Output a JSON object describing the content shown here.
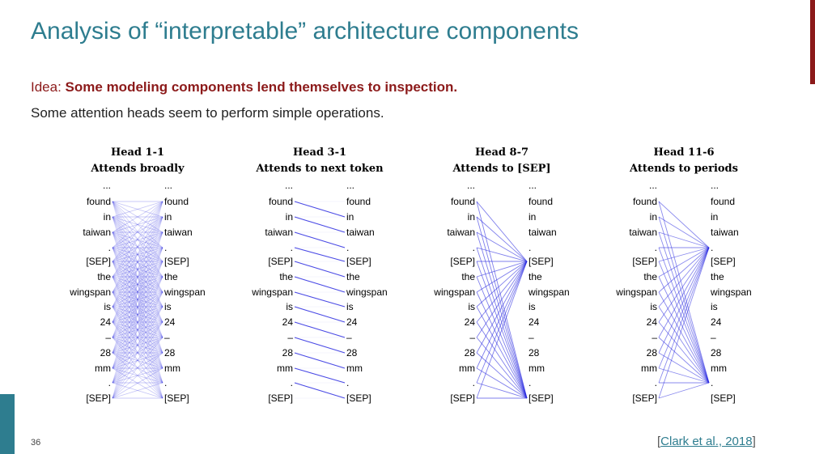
{
  "slide": {
    "title": "Analysis of “interpretable” architecture components",
    "idea_prefix": "Idea: ",
    "idea_bold": "Some modeling components lend themselves to inspection.",
    "subline": "Some attention heads seem to perform simple operations.",
    "page_number": "36",
    "citation_open": "[",
    "citation_link": "Clark et al., 2018",
    "citation_close": "]"
  },
  "colors": {
    "title": "#2e7d8f",
    "accent": "#8c1a1a",
    "attention": "#2a2ae0"
  },
  "tokens": [
    "...",
    "found",
    "in",
    "taiwan",
    ".",
    "[SEP]",
    "the",
    "wingspan",
    "is",
    "24",
    "–",
    "28",
    "mm",
    ".",
    "[SEP]"
  ],
  "heads": [
    {
      "line1": "Head 1-1",
      "line2": "Attends broadly",
      "pattern": "broad"
    },
    {
      "line1": "Head 3-1",
      "line2": "Attends to next token",
      "pattern": "next"
    },
    {
      "line1": "Head 8-7",
      "line2": "Attends to [SEP]",
      "pattern": "sep"
    },
    {
      "line1": "Head 11-6",
      "line2": "Attends to periods",
      "pattern": "period"
    }
  ]
}
